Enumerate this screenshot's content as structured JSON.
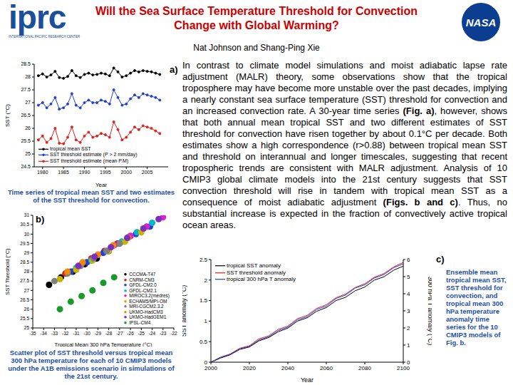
{
  "header": {
    "logo_left": {
      "text": "iprc",
      "subtext": "INTERNATIONAL PACIFIC RESEARCH CENTER"
    },
    "logo_right": "NASA",
    "title": [
      "Will the Sea Surface Temperature Threshold for Convection",
      "Change with Global Warming?"
    ],
    "authors": "Nat Johnson and Shang-Ping Xie"
  },
  "body": [
    {
      "text": "In contrast to climate model simulations and moist adiabatic lapse rate adjustment (MALR) theory, some observations show that the tropical troposphere may have become more unstable over the past decades, implying a nearly constant sea surface temperature (SST) threshold for convection and an increased convection rate. A 30-year time series ",
      "bold": false
    },
    {
      "text": "(Fig. a)",
      "bold": true
    },
    {
      "text": ", however, shows that both annual mean tropical SST and two different estimates of SST threshold for convection have risen together by about 0.1°C per decade. Both estimates show a high correspondence (r>0.88) between tropical mean SST and threshold on interannual and longer timescales, suggesting that recent tropospheric trends are consistent with MALR adjustment. Analysis of 10 CMIP3 global climate models into the 21st century suggests that SST convection threshold will rise in tandem with tropical mean SST as a consequence of moist adiabatic adjustment ",
      "bold": false
    },
    {
      "text": "(Figs. b and c)",
      "bold": true
    },
    {
      "text": ". Thus, no substantial increase is expected in the fraction of convectively active tropical ocean areas.",
      "bold": false
    }
  ],
  "chart_data": [
    {
      "type": "line",
      "panel_label": "a)",
      "caption": "Time series of tropical mean SST and two estimates of the SST threshold for convection.",
      "x_label": "Year",
      "y_label": "SST (°C)",
      "x": [
        1979,
        1980,
        1981,
        1982,
        1983,
        1984,
        1985,
        1986,
        1987,
        1988,
        1989,
        1990,
        1991,
        1992,
        1993,
        1994,
        1995,
        1996,
        1997,
        1998,
        1999,
        2000,
        2001,
        2002,
        2003,
        2004,
        2005,
        2006,
        2007,
        2008
      ],
      "xlim": [
        1978,
        2010
      ],
      "xticks": [
        1980,
        1985,
        1990,
        1995,
        2000,
        2005
      ],
      "ylim": [
        24.5,
        28.5
      ],
      "yticks": [
        24.5,
        25,
        25.5,
        26,
        26.5,
        27,
        27.5,
        28,
        28.5
      ],
      "legend": "lower left",
      "series": [
        {
          "name": "tropical mean SST",
          "color": "#000000",
          "marker": "circle",
          "values": [
            28.05,
            28.12,
            28.0,
            28.08,
            28.22,
            27.98,
            27.95,
            28.02,
            28.25,
            28.05,
            27.98,
            28.1,
            28.15,
            28.08,
            28.1,
            28.15,
            28.12,
            28.05,
            28.35,
            28.2,
            28.0,
            28.05,
            28.15,
            28.25,
            28.2,
            28.25,
            28.22,
            28.2,
            28.15,
            28.1
          ]
        },
        {
          "name": "SST threshold estimate (P > 2 mm/day)",
          "color": "#1f3fd6",
          "marker": "circle",
          "values": [
            26.9,
            27.0,
            26.8,
            26.95,
            27.2,
            26.75,
            26.8,
            26.95,
            27.35,
            26.9,
            26.8,
            27.0,
            27.1,
            27.0,
            27.0,
            27.1,
            27.05,
            26.95,
            27.5,
            27.2,
            26.9,
            26.95,
            27.15,
            27.3,
            27.2,
            27.35,
            27.3,
            27.25,
            27.2,
            27.1
          ]
        },
        {
          "name": "SST threshold estimate (mean P.M)",
          "color": "#e0201b",
          "marker": "circle",
          "values": [
            25.55,
            25.7,
            25.45,
            25.6,
            26.0,
            25.42,
            25.4,
            25.65,
            26.05,
            25.55,
            25.45,
            25.7,
            25.85,
            25.65,
            25.7,
            25.8,
            25.75,
            25.65,
            26.25,
            25.95,
            25.55,
            25.65,
            25.85,
            26.05,
            25.95,
            26.1,
            26.05,
            26.0,
            25.9,
            25.8
          ]
        }
      ]
    },
    {
      "type": "scatter",
      "panel_label": "b)",
      "caption": "Scatter plot of SST threshold versus tropical mean 300 hPa temperature for each of 10 CMIP3 models under the A1B emissions scenario in simulations of the 21st century.",
      "x_label": "Tropical Mean 300 hPa Temperature (°C)",
      "y_label": "SST Threshold (°C)",
      "xlim": [
        -35,
        -22
      ],
      "xticks": [
        -35,
        -34,
        -33,
        -32,
        -31,
        -30,
        -29,
        -28,
        -27,
        -26,
        -25,
        -24,
        -23,
        -22
      ],
      "ylim": [
        25,
        31
      ],
      "yticks": [
        25,
        25.5,
        26,
        26.5,
        27,
        27.5,
        28,
        28.5,
        29,
        29.5,
        30,
        30.5,
        31
      ],
      "legend": "lower right",
      "series": [
        {
          "name": "CCCMA-T47",
          "color": "#000000",
          "marker": "circle",
          "x": [
            -33.5,
            -32.4,
            -31.3,
            -30.2,
            -29.1,
            -28.0
          ],
          "values": [
            27.3,
            27.7,
            28.0,
            28.4,
            28.7,
            29.1
          ]
        },
        {
          "name": "CNRM-CM3",
          "color": "#e0201b",
          "marker": "circle",
          "x": [
            -32.0,
            -30.8,
            -29.6,
            -28.4,
            -27.2,
            -26.0
          ],
          "values": [
            27.9,
            28.3,
            28.7,
            29.1,
            29.5,
            29.9
          ]
        },
        {
          "name": "GFDL-CM2.0",
          "color": "#1f3fd6",
          "marker": "circle",
          "x": [
            -31.5,
            -30.0,
            -28.5,
            -27.0,
            -25.5,
            -24.2
          ],
          "values": [
            28.0,
            28.5,
            29.0,
            29.5,
            30.0,
            30.4
          ]
        },
        {
          "name": "GFDL-CM2.1",
          "color": "#00b5d0",
          "marker": "circle",
          "x": [
            -31.0,
            -29.6,
            -28.2,
            -26.8,
            -25.4,
            -24.0
          ],
          "values": [
            28.2,
            28.6,
            29.1,
            29.6,
            30.1,
            30.6
          ]
        },
        {
          "name": "MIROC3.2(medres)",
          "color": "#e020d0",
          "marker": "circle",
          "x": [
            -30.5,
            -29.0,
            -27.5,
            -26.0,
            -24.5,
            -23.0
          ],
          "values": [
            28.4,
            28.9,
            29.4,
            29.9,
            30.4,
            30.9
          ]
        },
        {
          "name": "ECHAM5/MPI-OM",
          "color": "#c8b400",
          "marker": "circle",
          "x": [
            -32.5,
            -31.0,
            -29.5,
            -28.0,
            -26.5,
            -25.0
          ],
          "values": [
            27.6,
            28.1,
            28.6,
            29.1,
            29.6,
            30.1
          ]
        },
        {
          "name": "MRI-CGCM2.3.2",
          "color": "#808080",
          "marker": "circle",
          "x": [
            -33.0,
            -31.8,
            -30.6,
            -29.4,
            -28.2,
            -27.0
          ],
          "values": [
            27.5,
            27.9,
            28.3,
            28.7,
            29.1,
            29.5
          ]
        },
        {
          "name": "UKMO-HadCM3",
          "color": "#f08a00",
          "marker": "circle",
          "x": [
            -31.8,
            -30.4,
            -29.0,
            -27.6,
            -26.2,
            -24.8
          ],
          "values": [
            28.0,
            28.5,
            28.9,
            29.4,
            29.8,
            30.3
          ]
        },
        {
          "name": "UKMO-HadGEM1",
          "color": "#7a2fbf",
          "marker": "circle",
          "x": [
            -30.8,
            -29.3,
            -27.8,
            -26.3,
            -24.8,
            -23.4
          ],
          "values": [
            28.3,
            28.8,
            29.3,
            29.8,
            30.3,
            30.8
          ]
        },
        {
          "name": "IPSL-CM4",
          "color": "#1a9a2a",
          "marker": "circle",
          "x": [
            -32.5,
            -31.5,
            -30.5,
            -29.5,
            -28.5,
            -27.5
          ],
          "values": [
            26.0,
            26.4,
            26.7,
            27.0,
            27.4,
            27.7
          ]
        }
      ]
    },
    {
      "type": "line",
      "panel_label": "c)",
      "caption": "Ensemble mean tropical mean SST, SST threshold for convection, and tropical mean 300 hPa temperature anomaly time series for the 10 CMIP3 models of Fig. b.",
      "x_label": "Year",
      "y_label": "SST anomaly (°C)",
      "y2_label": "300 hPa T anomaly (°C)",
      "x": [
        2000,
        2005,
        2010,
        2015,
        2020,
        2025,
        2030,
        2035,
        2040,
        2045,
        2050,
        2055,
        2060,
        2065,
        2070,
        2075,
        2080,
        2085,
        2090,
        2095,
        2100
      ],
      "xlim": [
        2000,
        2100
      ],
      "xticks": [
        2000,
        2020,
        2040,
        2060,
        2080,
        2100
      ],
      "ylim": [
        0,
        2.5
      ],
      "yticks": [
        0,
        0.5,
        1,
        1.5,
        2,
        2.5
      ],
      "y2lim": [
        0,
        6
      ],
      "y2ticks": [
        0,
        1,
        2,
        3,
        4,
        5,
        6
      ],
      "legend": "upper left",
      "series": [
        {
          "name": "tropical SST anomaly",
          "color": "#000000",
          "values": [
            0,
            0.1,
            0.18,
            0.31,
            0.37,
            0.52,
            0.6,
            0.74,
            0.83,
            1.0,
            1.08,
            1.24,
            1.33,
            1.5,
            1.58,
            1.74,
            1.83,
            2.0,
            2.08,
            2.24,
            2.34
          ]
        },
        {
          "name": "SST threshold anomaly",
          "color": "#e0201b",
          "values": [
            0,
            0.12,
            0.2,
            0.34,
            0.4,
            0.57,
            0.64,
            0.8,
            0.88,
            1.06,
            1.14,
            1.31,
            1.4,
            1.57,
            1.66,
            1.82,
            1.91,
            2.07,
            2.16,
            2.32,
            2.43
          ]
        },
        {
          "name": "tropical 300 hPa T anomaly",
          "color": "#1f3fd6",
          "axis": "y2",
          "values": [
            0,
            0.28,
            0.45,
            0.78,
            0.92,
            1.3,
            1.48,
            1.85,
            2.05,
            2.48,
            2.66,
            3.08,
            3.28,
            3.72,
            3.92,
            4.33,
            4.52,
            4.92,
            5.12,
            5.52,
            5.75
          ]
        }
      ]
    }
  ]
}
